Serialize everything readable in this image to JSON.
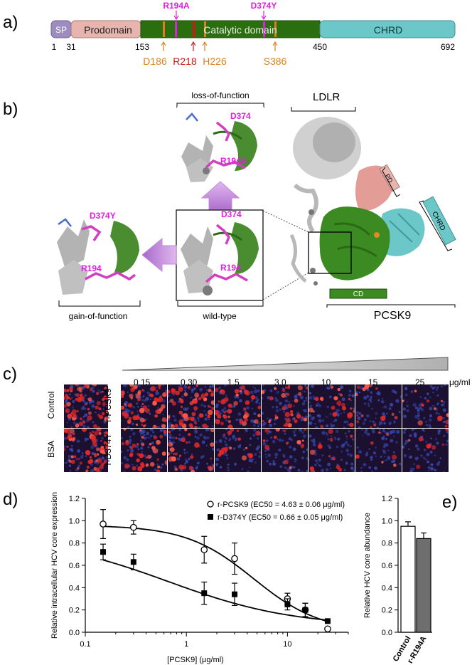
{
  "panels": {
    "a": "a)",
    "b": "b)",
    "c": "c)",
    "d": "d)",
    "e": "e)"
  },
  "domain_map": {
    "sp": "SP",
    "prodomain": "Prodomain",
    "catalytic": "Catalytic domain",
    "chrd": "CHRD",
    "positions": [
      "1",
      "31",
      "153",
      "450",
      "692"
    ],
    "top_mutations": [
      {
        "label": "R194A",
        "color": "#e020e0"
      },
      {
        "label": "D374Y",
        "color": "#e020e0"
      }
    ],
    "bottom_residues": [
      {
        "label": "D186",
        "color": "#d98020"
      },
      {
        "label": "R218",
        "color": "#d01818"
      },
      {
        "label": "H226",
        "color": "#d98020"
      },
      {
        "label": "S386",
        "color": "#d98020"
      }
    ],
    "colors": {
      "sp": "#9c8cc0",
      "prodomain": "#e8b4ae",
      "catalytic": "#2a6e10",
      "chrd": "#6cc8c8"
    }
  },
  "structure": {
    "loss_label": "loss-of-function",
    "gain_label": "gain-of-function",
    "wildtype_label": "wild-type",
    "ldlr_label": "LDLR",
    "pcsk9_label": "PCSK9",
    "pd_tag": "PD",
    "chrd_tag": "CHRD",
    "cd_tag": "CD",
    "residue_labels": {
      "loss_top": "D374",
      "loss_bottom": "R194A",
      "gain_top": "D374Y",
      "gain_bottom": "R194",
      "wt_top": "D374",
      "wt_bottom": "R194"
    }
  },
  "microscopy": {
    "concentrations": [
      "0.15",
      "0.30",
      "1.5",
      "3.0",
      "10",
      "15",
      "25"
    ],
    "unit": "μg/ml",
    "left_labels": [
      "Control",
      "BSA"
    ],
    "row_labels": [
      "r-PCSK9",
      "r-D374Y"
    ],
    "intensity": {
      "row1": [
        0.9,
        0.85,
        0.55,
        0.45,
        0.3,
        0.2,
        0.15
      ],
      "row2": [
        0.55,
        0.45,
        0.25,
        0.2,
        0.15,
        0.12,
        0.1
      ],
      "controls": [
        0.9,
        0.95
      ]
    }
  },
  "chart_data": [
    {
      "type": "scatter",
      "xlabel": "[PCSK9] (μg/ml)",
      "ylabel": "Relative intracellular HCV core expression",
      "xscale": "log",
      "xlim": [
        0.1,
        40
      ],
      "ylim": [
        0.0,
        1.2
      ],
      "yticks": [
        "0.0",
        "0.2",
        "0.4",
        "0.6",
        "0.8",
        "1.0",
        "1.2"
      ],
      "xticks": [
        "0.1",
        "1",
        "10"
      ],
      "legend_position": "top-right",
      "series": [
        {
          "name": "r-PCSK9 (EC50 = 4.63 ± 0.06 μg/ml)",
          "marker": "open-circle",
          "x": [
            0.15,
            0.3,
            1.5,
            3.0,
            10,
            15,
            25
          ],
          "y": [
            0.97,
            0.94,
            0.74,
            0.66,
            0.3,
            0.2,
            0.03
          ],
          "err": [
            0.13,
            0.06,
            0.12,
            0.14,
            0.05,
            0.06,
            0.01
          ],
          "fit_ec50": 4.63,
          "fit_top": 0.96,
          "fit_bottom": 0.0,
          "fit_hill": 1.3
        },
        {
          "name": "r-D374Y (EC50 = 0.66 ± 0.05 μg/ml)",
          "marker": "filled-square",
          "x": [
            0.15,
            0.3,
            1.5,
            3.0,
            10,
            15,
            25
          ],
          "y": [
            0.72,
            0.63,
            0.35,
            0.34,
            0.25,
            0.2,
            0.1
          ],
          "err": [
            0.07,
            0.07,
            0.1,
            0.1,
            0.05,
            0.06,
            0.01
          ],
          "fit_ec50": 0.66,
          "fit_top": 0.86,
          "fit_bottom": 0.05,
          "fit_hill": 0.7
        }
      ]
    },
    {
      "type": "bar",
      "ylabel": "Relative HCV core abundance",
      "ylim": [
        0.0,
        1.2
      ],
      "yticks": [
        "0.0",
        "0.2",
        "0.4",
        "0.6",
        "0.8",
        "1.0",
        "1.2"
      ],
      "categories": [
        "Control",
        "r-R194A"
      ],
      "values": [
        0.95,
        0.84
      ],
      "err": [
        0.04,
        0.05
      ],
      "colors": [
        "#ffffff",
        "#6e6e6e"
      ]
    }
  ]
}
